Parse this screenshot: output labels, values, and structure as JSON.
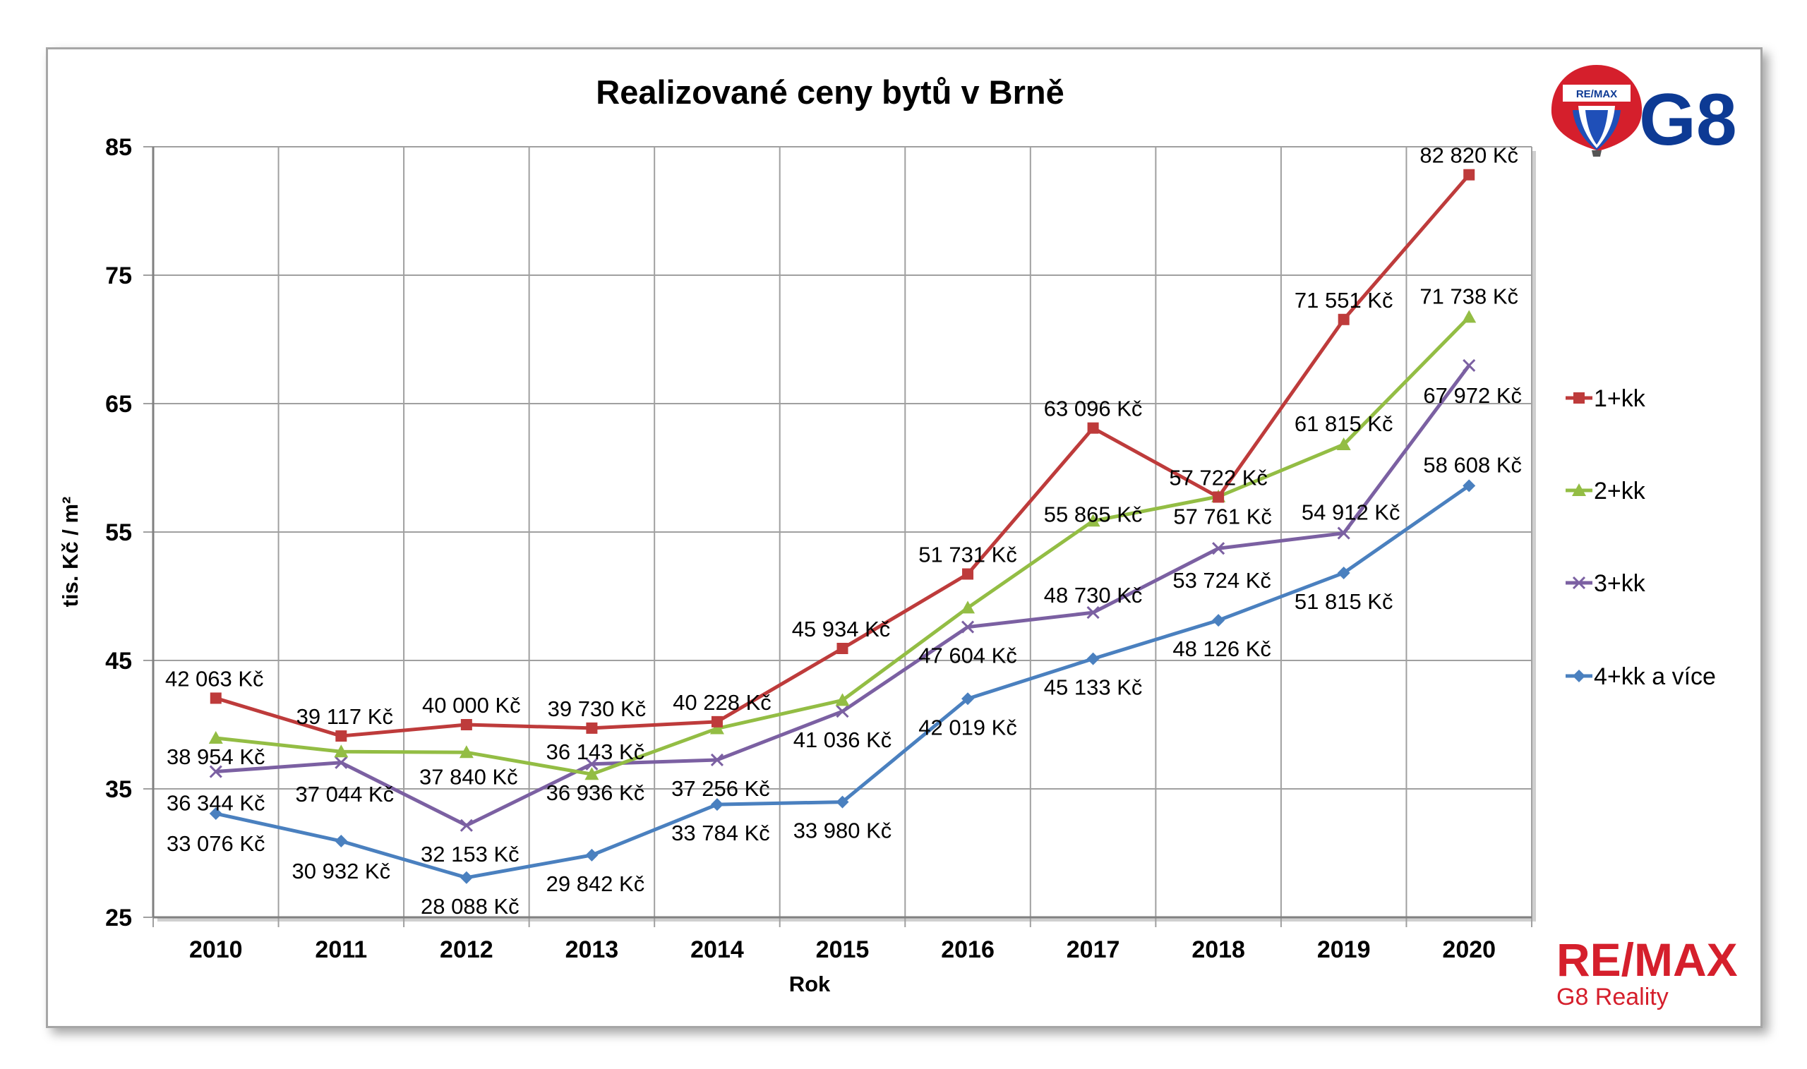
{
  "colors": {
    "1+kk": "#be3b3b",
    "2+kk": "#93bd44",
    "3+kk": "#7b60a2",
    "4+kk a více": "#4a80bf",
    "grid": "#a0a0a0",
    "brand_red": "#d51f2c",
    "brand_blue": "#0d3a94"
  },
  "logo": {
    "balloon_text": "RE/MAX",
    "g8_text": "G8"
  },
  "brand": {
    "name": "RE/MAX",
    "sub": "G8 Reality"
  },
  "chart_data": {
    "type": "line",
    "title": "Realizované ceny bytů v Brně",
    "xlabel": "Rok",
    "ylabel": "tis. Kč / m²",
    "ylim": [
      25,
      85
    ],
    "yticks": [
      "25",
      "35",
      "45",
      "55",
      "65",
      "75",
      "85"
    ],
    "categories": [
      "2010",
      "2011",
      "2012",
      "2013",
      "2014",
      "2015",
      "2016",
      "2017",
      "2018",
      "2019",
      "2020"
    ],
    "grid": true,
    "legend_position": "right",
    "series": [
      {
        "name": "1+kk",
        "marker": "square",
        "values": [
          42.063,
          39.117,
          40.0,
          39.73,
          40.228,
          45.934,
          51.731,
          63.096,
          57.722,
          71.551,
          82.82
        ],
        "labels": [
          "42 063 Kč",
          "39 117 Kč",
          "40 000 Kč",
          "39 730 Kč",
          "40 228 Kč",
          "45 934 Kč",
          "51 731 Kč",
          "63 096 Kč",
          "57 722 Kč",
          "71 551 Kč",
          "82 820 Kč"
        ]
      },
      {
        "name": "2+kk",
        "marker": "triangle",
        "values": [
          38.954,
          37.9,
          37.84,
          36.143,
          39.7,
          41.9,
          49.1,
          55.865,
          57.761,
          61.815,
          71.738
        ],
        "labels": [
          "38 954 Kč",
          "",
          "37 840 Kč",
          "36 143 Kč",
          "",
          "",
          "",
          "55 865 Kč",
          "57 761 Kč",
          "61 815 Kč",
          "71 738 Kč"
        ]
      },
      {
        "name": "3+kk",
        "marker": "x",
        "values": [
          36.344,
          37.044,
          32.153,
          36.936,
          37.256,
          41.036,
          47.604,
          48.73,
          53.724,
          54.912,
          67.972
        ],
        "labels": [
          "36 344 Kč",
          "37 044 Kč",
          "32 153 Kč",
          "36 936 Kč",
          "37 256 Kč",
          "41 036 Kč",
          "47 604 Kč",
          "48 730 Kč",
          "53 724 Kč",
          "54 912 Kč",
          "67 972 Kč"
        ]
      },
      {
        "name": "4+kk a více",
        "marker": "diamond",
        "values": [
          33.076,
          30.932,
          28.088,
          29.842,
          33.784,
          33.98,
          42.019,
          45.133,
          48.126,
          51.815,
          58.608
        ],
        "labels": [
          "33 076 Kč",
          "30 932 Kč",
          "28 088 Kč",
          "29 842 Kč",
          "33 784 Kč",
          "33 980 Kč",
          "42 019 Kč",
          "45 133 Kč",
          "48 126 Kč",
          "51 815 Kč",
          "58 608 Kč"
        ]
      }
    ]
  }
}
